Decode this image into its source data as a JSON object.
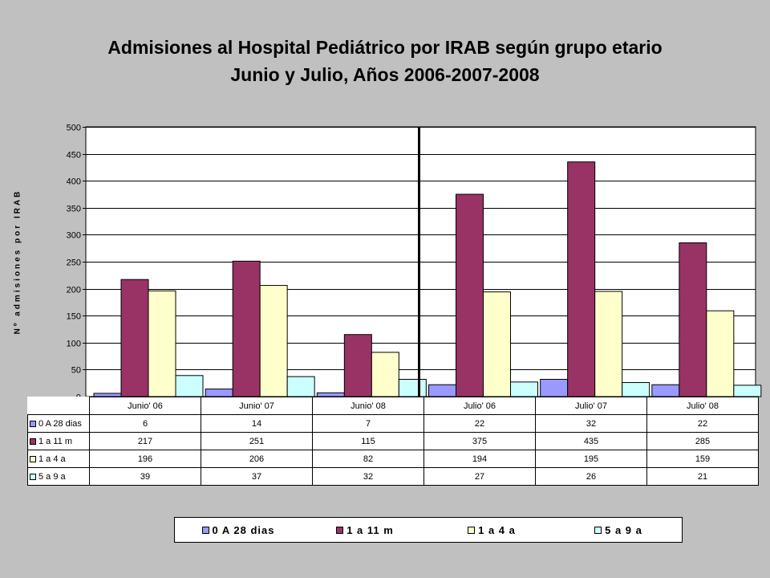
{
  "chart_data": {
    "type": "bar",
    "title": "Admisiones al Hospital Pediátrico por IRAB según grupo etario",
    "subtitle": "Junio y Julio, Años  2006-2007-2008",
    "ylabel": "Nº admisiones por IRAB",
    "xlabel": "",
    "ylim": [
      0,
      500
    ],
    "yticks": [
      0,
      50,
      100,
      150,
      200,
      250,
      300,
      350,
      400,
      450,
      500
    ],
    "categories": [
      "Junio' 06",
      "Junio' 07",
      "Junio' 08",
      "Julio' 06",
      "Julio' 07",
      "Julio' 08"
    ],
    "series": [
      {
        "name": "0 A 28 dias",
        "table_label": "0 A 28 dias",
        "color": "#9999ff",
        "values": [
          6,
          14,
          7,
          22,
          32,
          22
        ]
      },
      {
        "name": "1 a 11 m",
        "table_label": "1 a 11 m",
        "color": "#993366",
        "values": [
          217,
          251,
          115,
          375,
          435,
          285
        ]
      },
      {
        "name": "1 a 4 a",
        "table_label": "1 a 4 a",
        "color": "#ffffcc",
        "values": [
          196,
          206,
          82,
          194,
          195,
          159
        ]
      },
      {
        "name": "5 a 9 a",
        "table_label": "5 a 9 a",
        "color": "#ccffff",
        "values": [
          39,
          37,
          32,
          27,
          26,
          21
        ]
      }
    ],
    "grid": true,
    "legend": "bottom",
    "data_table": true,
    "separator_after_category": 3
  }
}
